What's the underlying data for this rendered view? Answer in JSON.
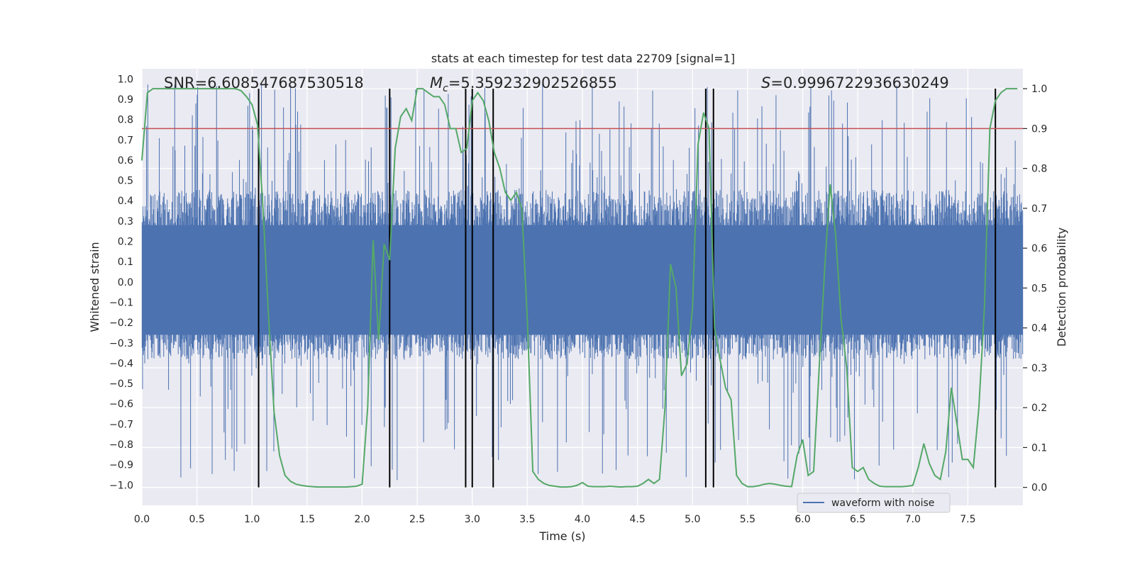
{
  "chart_data": {
    "type": "line",
    "title": "stats at each timestep for test data 22709 [signal=1]",
    "xlabel": "Time (s)",
    "ylabel": "Whitened strain",
    "ylabel_right": "Detection probability",
    "xlim": [
      0,
      8
    ],
    "ylim": [
      -1.1,
      1.05
    ],
    "ylim_right": [
      -0.045,
      1.05
    ],
    "x_ticks": [
      0,
      0.5,
      1,
      1.5,
      2,
      2.5,
      3,
      3.5,
      4,
      4.5,
      5,
      5.5,
      6,
      6.5,
      7,
      7.5
    ],
    "x_tick_labels": [
      "0.0",
      "0.5",
      "1.0",
      "1.5",
      "2.0",
      "2.5",
      "3.0",
      "3.5",
      "4.0",
      "4.5",
      "5.0",
      "5.5",
      "6.0",
      "6.5",
      "7.0",
      "7.5"
    ],
    "y_ticks": [
      -1,
      -0.9,
      -0.8,
      -0.7,
      -0.6,
      -0.5,
      -0.4,
      -0.3,
      -0.2,
      -0.1,
      0,
      0.1,
      0.2,
      0.3,
      0.4,
      0.5,
      0.6,
      0.7,
      0.8,
      0.9,
      1
    ],
    "y_tick_labels": [
      "−1.0",
      "−0.9",
      "−0.8",
      "−0.7",
      "−0.6",
      "−0.5",
      "−0.4",
      "−0.3",
      "−0.2",
      "−0.1",
      "0.0",
      "0.1",
      "0.2",
      "0.3",
      "0.4",
      "0.5",
      "0.6",
      "0.7",
      "0.8",
      "0.9",
      "1.0"
    ],
    "y_right_ticks": [
      0,
      0.1,
      0.2,
      0.3,
      0.4,
      0.5,
      0.6,
      0.7,
      0.8,
      0.9,
      1
    ],
    "y_right_tick_labels": [
      "0.0",
      "0.1",
      "0.2",
      "0.3",
      "0.4",
      "0.5",
      "0.6",
      "0.7",
      "0.8",
      "0.9",
      "1.0"
    ],
    "annotations": {
      "snr": "SNR=6.608547687530518",
      "mc_symbol": "M",
      "mc_subscript": "c",
      "mc_value": "=5.359232902526855",
      "s_symbol": "S",
      "s_value": "=0.9996722936630249"
    },
    "legend": {
      "label": "waveform with noise",
      "position": "lower-right"
    },
    "threshold": {
      "value": 0.9,
      "axis": "right",
      "color": "#c44e52"
    },
    "vertical_lines": [
      1.06,
      2.25,
      2.94,
      3.0,
      3.19,
      5.12,
      5.19,
      7.75
    ],
    "waveform": {
      "name": "waveform with noise",
      "color": "#4c72b0",
      "n_bars": 2000,
      "seed": 22709,
      "envelope_upper": 0.45,
      "envelope_lower": -0.38,
      "spike_max": 0.98,
      "spike_min": -0.98
    },
    "probability_series": {
      "name": "Detection probability",
      "color": "#55a868",
      "x": [
        0,
        0.05,
        0.1,
        0.15,
        0.2,
        0.25,
        0.3,
        0.35,
        0.4,
        0.45,
        0.5,
        0.55,
        0.6,
        0.65,
        0.7,
        0.75,
        0.8,
        0.85,
        0.9,
        0.95,
        1.0,
        1.05,
        1.1,
        1.15,
        1.2,
        1.25,
        1.3,
        1.35,
        1.4,
        1.45,
        1.5,
        1.55,
        1.6,
        1.65,
        1.7,
        1.75,
        1.8,
        1.85,
        1.9,
        1.95,
        2.0,
        2.05,
        2.1,
        2.15,
        2.2,
        2.25,
        2.3,
        2.35,
        2.4,
        2.45,
        2.5,
        2.55,
        2.6,
        2.65,
        2.7,
        2.75,
        2.8,
        2.85,
        2.9,
        2.95,
        3.0,
        3.05,
        3.1,
        3.15,
        3.2,
        3.25,
        3.3,
        3.35,
        3.4,
        3.45,
        3.5,
        3.55,
        3.6,
        3.65,
        3.7,
        3.75,
        3.8,
        3.85,
        3.9,
        3.95,
        4.0,
        4.05,
        4.1,
        4.15,
        4.2,
        4.25,
        4.3,
        4.35,
        4.4,
        4.45,
        4.5,
        4.55,
        4.6,
        4.65,
        4.7,
        4.75,
        4.8,
        4.85,
        4.9,
        4.95,
        5.0,
        5.05,
        5.1,
        5.15,
        5.2,
        5.25,
        5.3,
        5.35,
        5.4,
        5.45,
        5.5,
        5.55,
        5.6,
        5.65,
        5.7,
        5.75,
        5.8,
        5.85,
        5.9,
        5.95,
        6.0,
        6.05,
        6.1,
        6.15,
        6.2,
        6.25,
        6.3,
        6.35,
        6.4,
        6.45,
        6.5,
        6.55,
        6.6,
        6.65,
        6.7,
        6.75,
        6.8,
        6.85,
        6.9,
        6.95,
        7.0,
        7.05,
        7.1,
        7.15,
        7.2,
        7.25,
        7.3,
        7.35,
        7.4,
        7.45,
        7.5,
        7.55,
        7.6,
        7.65,
        7.7,
        7.75,
        7.8,
        7.85,
        7.9,
        7.95
      ],
      "y": [
        0.82,
        0.99,
        1.0,
        1.0,
        1.0,
        1.0,
        1.0,
        1.0,
        1.0,
        1.0,
        1.0,
        1.0,
        1.0,
        1.0,
        1.0,
        1.0,
        1.0,
        1.0,
        0.995,
        0.98,
        0.96,
        0.91,
        0.7,
        0.43,
        0.19,
        0.08,
        0.03,
        0.015,
        0.008,
        0.005,
        0.003,
        0.002,
        0.001,
        0.001,
        0.001,
        0.001,
        0.001,
        0.001,
        0.002,
        0.003,
        0.008,
        0.2,
        0.62,
        0.37,
        0.61,
        0.57,
        0.85,
        0.93,
        0.95,
        0.92,
        1.0,
        1.0,
        0.99,
        0.98,
        0.98,
        0.96,
        0.9,
        0.9,
        0.84,
        0.85,
        0.97,
        0.99,
        0.97,
        0.92,
        0.84,
        0.8,
        0.74,
        0.72,
        0.74,
        0.7,
        0.42,
        0.04,
        0.02,
        0.01,
        0.005,
        0.003,
        0.001,
        0.001,
        0.002,
        0.005,
        0.012,
        0.003,
        0.002,
        0.002,
        0.002,
        0.003,
        0.002,
        0.001,
        0.002,
        0.002,
        0.003,
        0.01,
        0.02,
        0.01,
        0.02,
        0.2,
        0.56,
        0.5,
        0.28,
        0.31,
        0.45,
        0.86,
        0.94,
        0.9,
        0.4,
        0.32,
        0.25,
        0.22,
        0.03,
        0.01,
        0.002,
        0.002,
        0.004,
        0.008,
        0.01,
        0.008,
        0.005,
        0.003,
        0.002,
        0.08,
        0.12,
        0.03,
        0.04,
        0.3,
        0.55,
        0.76,
        0.63,
        0.42,
        0.3,
        0.05,
        0.04,
        0.05,
        0.02,
        0.01,
        0.003,
        0.002,
        0.002,
        0.002,
        0.002,
        0.003,
        0.005,
        0.05,
        0.11,
        0.06,
        0.03,
        0.02,
        0.09,
        0.25,
        0.16,
        0.07,
        0.07,
        0.05,
        0.2,
        0.45,
        0.9,
        0.97,
        0.99,
        1.0,
        1.0,
        1.0
      ]
    }
  }
}
